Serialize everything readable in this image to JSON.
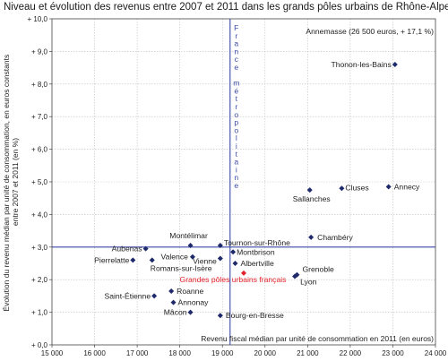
{
  "chart_data": {
    "type": "scatter",
    "title": "Niveau et évolution des revenus entre 2007 et 2011 dans les grands pôles urbains de Rhône-Alpes",
    "xlabel": "Revenu fiscal médian par unité de consommation en 2011 (en euros)",
    "ylabel": [
      "Évolution du revenu médian par unité de consommation, en euros constants",
      "entre 2007 et 2011 (en %)"
    ],
    "xlim": [
      15000,
      24000
    ],
    "ylim": [
      0,
      10
    ],
    "xticks": [
      15000,
      16000,
      17000,
      18000,
      19000,
      20000,
      21000,
      22000,
      23000,
      24000
    ],
    "xtick_labels": [
      "15 000",
      "16 000",
      "17 000",
      "18 000",
      "19 000",
      "20 000",
      "21 000",
      "22 000",
      "23 000",
      "24 000"
    ],
    "yticks": [
      0,
      1,
      2,
      3,
      4,
      5,
      6,
      7,
      8,
      9,
      10
    ],
    "ytick_labels": [
      "+ 0,0",
      "+ 1,0",
      "+ 2,0",
      "+ 3,0",
      "+ 4,0",
      "+ 5,0",
      "+ 6,0",
      "+ 7,0",
      "+ 8,0",
      "+ 9,0",
      "+ 10,0"
    ],
    "grid": true,
    "reference": {
      "label": "France métropolitaine",
      "x": 19180,
      "y": 3.0,
      "color": "#3a49a6"
    },
    "annotation": "Annemasse (26 500 euros, + 17,1 %)",
    "colors": {
      "points": "#1f2a6b",
      "highlight": "#e4232b"
    },
    "points": [
      {
        "name": "Thonon-les-Bains",
        "x": 23050,
        "y": 8.6
      },
      {
        "name": "Annecy",
        "x": 22900,
        "y": 4.85
      },
      {
        "name": "Cluses",
        "x": 21800,
        "y": 4.8
      },
      {
        "name": "Sallanches",
        "x": 21050,
        "y": 4.75
      },
      {
        "name": "Chambéry",
        "x": 21080,
        "y": 3.3
      },
      {
        "name": "Montélimar",
        "x": 18250,
        "y": 3.05
      },
      {
        "name": "Tournon-sur-Rhône",
        "x": 18950,
        "y": 3.05
      },
      {
        "name": "Montbrison",
        "x": 19250,
        "y": 2.85
      },
      {
        "name": "Aubenas",
        "x": 17200,
        "y": 2.95
      },
      {
        "name": "Valence",
        "x": 18300,
        "y": 2.7
      },
      {
        "name": "Pierrelatte",
        "x": 16900,
        "y": 2.6
      },
      {
        "name": "Romans-sur-Isère",
        "x": 17350,
        "y": 2.6
      },
      {
        "name": "Vienne",
        "x": 18950,
        "y": 2.65
      },
      {
        "name": "Albertville",
        "x": 19300,
        "y": 2.5
      },
      {
        "name": "Grandes pôles urbains français",
        "x": 19500,
        "y": 2.2,
        "highlight": true
      },
      {
        "name": "Grenoble",
        "x": 20750,
        "y": 2.15
      },
      {
        "name": "Lyon",
        "x": 20700,
        "y": 2.1
      },
      {
        "name": "Roanne",
        "x": 17800,
        "y": 1.65
      },
      {
        "name": "Saint-Étienne",
        "x": 17400,
        "y": 1.5
      },
      {
        "name": "Annonay",
        "x": 17850,
        "y": 1.3
      },
      {
        "name": "Mâcon",
        "x": 18250,
        "y": 1.0
      },
      {
        "name": "Bourg-en-Bresse",
        "x": 18950,
        "y": 0.9
      }
    ]
  }
}
